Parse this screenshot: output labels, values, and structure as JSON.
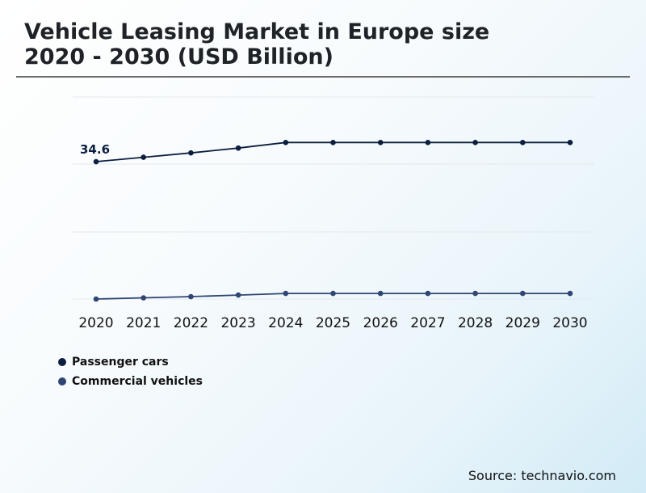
{
  "header": {
    "title_line1": "Vehicle Leasing Market in Europe size",
    "title_line2": "2020 - 2030 (USD Billion)"
  },
  "source": "Source: technavio.com",
  "colors": {
    "passenger": "#0c1e3f",
    "commercial": "#2f4573"
  },
  "chart_data": {
    "type": "line",
    "title": "Vehicle Leasing Market in Europe size 2020 - 2030 (USD Billion)",
    "x": [
      "2020",
      "2021",
      "2022",
      "2023",
      "2024",
      "2025",
      "2026",
      "2027",
      "2028",
      "2029",
      "2030"
    ],
    "ylim": [
      0,
      51
    ],
    "grid": true,
    "legend_position": "bottom-left",
    "series": [
      {
        "name": "Passenger cars",
        "values": [
          34.6,
          35.7,
          36.8,
          38.0,
          39.4,
          39.4,
          39.4,
          39.4,
          39.4,
          39.4,
          39.4
        ]
      },
      {
        "name": "Commercial vehicles",
        "values": [
          0.2,
          0.5,
          0.8,
          1.2,
          1.6,
          1.6,
          1.6,
          1.6,
          1.6,
          1.6,
          1.6
        ]
      }
    ],
    "annotations": [
      {
        "series": "Passenger cars",
        "x": "2020",
        "label": "34.6"
      }
    ]
  }
}
